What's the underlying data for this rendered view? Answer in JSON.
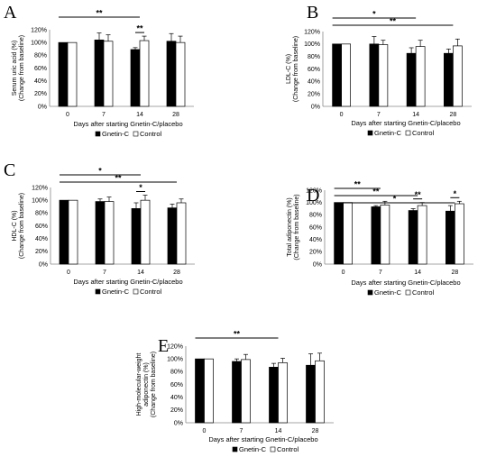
{
  "chart_data": [
    {
      "panel": "A",
      "type": "bar",
      "ylabel": [
        "Serum uric acid (%)",
        "(Change from baseline)"
      ],
      "xlabel": "Days after starting Gnetin-C/placebo",
      "categories": [
        "0",
        "7",
        "14",
        "28"
      ],
      "ylim": [
        0,
        120
      ],
      "yticks": [
        "0%",
        "20%",
        "40%",
        "60%",
        "80%",
        "100%",
        "120%"
      ],
      "series": [
        {
          "name": "Gnetin-C",
          "color": "#000000",
          "values": [
            100,
            104,
            89,
            102
          ],
          "errors": [
            0,
            11,
            3,
            12
          ]
        },
        {
          "name": "Control",
          "color": "#ffffff",
          "values": [
            100,
            102,
            103,
            100
          ],
          "errors": [
            0,
            10,
            7,
            10
          ]
        }
      ],
      "significance": [
        {
          "from": "0",
          "to": "14",
          "label": "**"
        },
        {
          "category": "14",
          "label": "**"
        }
      ],
      "legend": "bottom"
    },
    {
      "panel": "B",
      "type": "bar",
      "ylabel": [
        "LDL-C (%)",
        "(Change from baseline)"
      ],
      "xlabel": "Days after starting Gnetin-C/placebo",
      "categories": [
        "0",
        "7",
        "14",
        "28"
      ],
      "ylim": [
        0,
        120
      ],
      "yticks": [
        "0%",
        "20%",
        "40%",
        "60%",
        "80%",
        "100%",
        "120%"
      ],
      "series": [
        {
          "name": "Gnetin-C",
          "color": "#000000",
          "values": [
            100,
            100,
            85,
            85
          ],
          "errors": [
            0,
            12,
            9,
            7
          ]
        },
        {
          "name": "Control",
          "color": "#ffffff",
          "values": [
            100,
            99,
            96,
            97
          ],
          "errors": [
            0,
            7,
            10,
            11
          ]
        }
      ],
      "significance": [
        {
          "from": "0",
          "to": "14",
          "label": "*"
        },
        {
          "from": "0",
          "to": "28",
          "label": "**"
        }
      ],
      "legend": "bottom"
    },
    {
      "panel": "C",
      "type": "bar",
      "ylabel": [
        "HDL-C (%)",
        "(Change from baseline)"
      ],
      "xlabel": "Days after starting Gnetin-C/placebo",
      "categories": [
        "0",
        "7",
        "14",
        "28"
      ],
      "ylim": [
        0,
        120
      ],
      "yticks": [
        "0%",
        "20%",
        "40%",
        "60%",
        "80%",
        "100%",
        "120%"
      ],
      "series": [
        {
          "name": "Gnetin-C",
          "color": "#000000",
          "values": [
            100,
            98,
            87,
            88
          ],
          "errors": [
            0,
            4,
            9,
            6
          ]
        },
        {
          "name": "Control",
          "color": "#ffffff",
          "values": [
            100,
            98,
            100,
            96
          ],
          "errors": [
            0,
            7,
            8,
            6
          ]
        }
      ],
      "significance": [
        {
          "from": "0",
          "to": "14",
          "label": "*"
        },
        {
          "from": "0",
          "to": "28",
          "label": "**"
        },
        {
          "category": "14",
          "label": "*"
        }
      ],
      "legend": "bottom"
    },
    {
      "panel": "D",
      "type": "bar",
      "ylabel": [
        "Total adiponectin (%)",
        "(Change from baseline)"
      ],
      "xlabel": "Days after starting Gnetin-C/placebo",
      "categories": [
        "0",
        "7",
        "14",
        "28"
      ],
      "ylim": [
        0,
        120
      ],
      "yticks": [
        "0%",
        "20%",
        "40%",
        "60%",
        "80%",
        "100%",
        "120%"
      ],
      "series": [
        {
          "name": "Gnetin-C",
          "color": "#000000",
          "values": [
            100,
            93,
            87,
            86
          ],
          "errors": [
            0,
            2,
            3,
            9
          ]
        },
        {
          "name": "Control",
          "color": "#ffffff",
          "values": [
            100,
            96,
            95,
            98
          ],
          "errors": [
            0,
            6,
            5,
            4
          ]
        }
      ],
      "significance": [
        {
          "from": "0",
          "to": "7",
          "label": "**"
        },
        {
          "from": "0",
          "to": "14",
          "label": "**"
        },
        {
          "from": "0",
          "to": "28",
          "label": "*"
        },
        {
          "category": "14",
          "label": "**"
        },
        {
          "category": "28",
          "label": "*"
        }
      ],
      "legend": "bottom"
    },
    {
      "panel": "E",
      "type": "bar",
      "ylabel": [
        "High-molecular-weight",
        "adiponectin (%)",
        "(Change from baseline)"
      ],
      "xlabel": "Days after starting Gnetin-C/placebo",
      "categories": [
        "0",
        "7",
        "14",
        "28"
      ],
      "ylim": [
        0,
        120
      ],
      "yticks": [
        "0%",
        "20%",
        "40%",
        "60%",
        "80%",
        "100%",
        "120%"
      ],
      "series": [
        {
          "name": "Gnetin-C",
          "color": "#000000",
          "values": [
            100,
            96,
            87,
            90
          ],
          "errors": [
            0,
            4,
            6,
            18
          ]
        },
        {
          "name": "Control",
          "color": "#ffffff",
          "values": [
            100,
            99,
            94,
            97
          ],
          "errors": [
            0,
            8,
            7,
            12
          ]
        }
      ],
      "significance": [
        {
          "from": "0",
          "to": "14",
          "label": "**"
        }
      ],
      "legend": "bottom"
    }
  ]
}
